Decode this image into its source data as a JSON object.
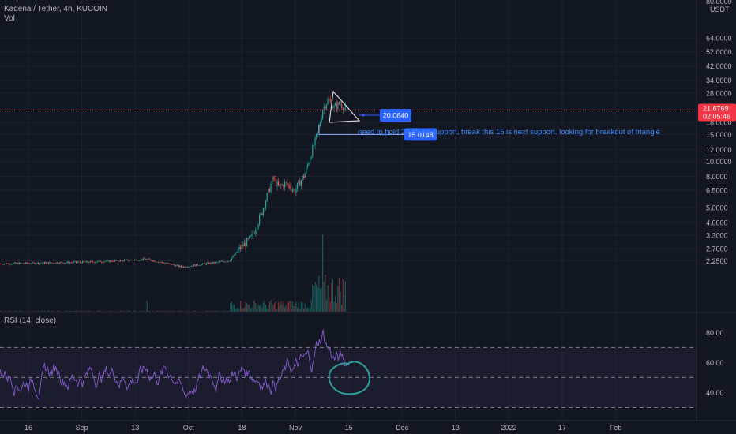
{
  "header": {
    "symbol": "Kadena / Tether, 4h, KUCOIN",
    "volume_label": "Vol",
    "rsi_label": "RSI (14, close)"
  },
  "currency_label": "USDT",
  "price_axis": {
    "top_cut_label": "80.0000",
    "ticks": [
      {
        "label": "64.0000",
        "value": 64
      },
      {
        "label": "52.0000",
        "value": 52
      },
      {
        "label": "42.0000",
        "value": 42
      },
      {
        "label": "34.0000",
        "value": 34
      },
      {
        "label": "28.0000",
        "value": 28
      },
      {
        "label": "22.0000",
        "value": 22
      },
      {
        "label": "18.0000",
        "value": 18
      },
      {
        "label": "15.0000",
        "value": 15
      },
      {
        "label": "12.0000",
        "value": 12
      },
      {
        "label": "10.0000",
        "value": 10
      },
      {
        "label": "8.0000",
        "value": 8
      },
      {
        "label": "6.5000",
        "value": 6.5
      },
      {
        "label": "5.0000",
        "value": 5
      },
      {
        "label": "4.0000",
        "value": 4
      },
      {
        "label": "3.3000",
        "value": 3.3
      },
      {
        "label": "2.7000",
        "value": 2.7
      },
      {
        "label": "2.2500",
        "value": 2.25
      }
    ],
    "scale": "log"
  },
  "current_price": {
    "value": "21.6769",
    "countdown": "02:05:46",
    "color": "#f23645"
  },
  "rsi_axis": {
    "ticks": [
      {
        "label": "80.00",
        "value": 80
      },
      {
        "label": "60.00",
        "value": 60
      },
      {
        "label": "40.00",
        "value": 40
      }
    ]
  },
  "time_axis": [
    {
      "label": "16",
      "slot": 0
    },
    {
      "label": "Sep",
      "slot": 1
    },
    {
      "label": "13",
      "slot": 2
    },
    {
      "label": "Oct",
      "slot": 3
    },
    {
      "label": "18",
      "slot": 4
    },
    {
      "label": "Nov",
      "slot": 5
    },
    {
      "label": "15",
      "slot": 6
    },
    {
      "label": "Dec",
      "slot": 7
    },
    {
      "label": "13",
      "slot": 8
    },
    {
      "label": "2022",
      "slot": 9
    },
    {
      "label": "17",
      "slot": 10
    },
    {
      "label": "Feb",
      "slot": 11
    }
  ],
  "annotations": {
    "support_1_label": "20.0640",
    "support_2_label": "15.0148",
    "note": "need to hold 20.15 as support. break this 15 is next support. looking for breakout of triangle"
  },
  "colors": {
    "background": "#131722",
    "up": "#26a69a",
    "down": "#ef5350",
    "rsi_line": "#7e57c2",
    "rsi_band": "#7e57c2",
    "annotation": "#2962ff",
    "circle": "#26a69a",
    "triangle": "#d1d4dc",
    "current_price": "#f23645"
  },
  "chart_data": {
    "type": "candlestick",
    "title": "Kadena / Tether, 4h, KUCOIN",
    "scale": "log",
    "ylim": [
      2.25,
      80
    ],
    "current_price": 21.6769,
    "key_points": [
      {
        "date": "2021-08-16",
        "close": 2.2
      },
      {
        "date": "2021-09-13",
        "close": 2.2
      },
      {
        "date": "2021-10-01",
        "close": 2.1
      },
      {
        "date": "2021-10-18",
        "close": 2.3
      },
      {
        "date": "2021-10-21",
        "close": 3.8
      },
      {
        "date": "2021-10-24",
        "close": 7.8
      },
      {
        "date": "2021-10-28",
        "close": 6.5
      },
      {
        "date": "2021-11-02",
        "close": 10.0
      },
      {
        "date": "2021-11-05",
        "close": 15.0
      },
      {
        "date": "2021-11-07",
        "close": 24.0
      },
      {
        "date": "2021-11-10",
        "close": 23.5
      },
      {
        "date": "2021-11-13",
        "close": 21.68
      }
    ],
    "support_levels": [
      20.064,
      15.0148
    ],
    "rsi": {
      "period": 14,
      "source": "close",
      "upper_band": 70,
      "lower_band": 30,
      "ticks": [
        80,
        60,
        40
      ]
    }
  }
}
